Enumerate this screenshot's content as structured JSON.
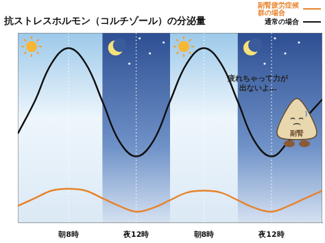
{
  "chart_data": {
    "type": "line",
    "title": "抗ストレスホルモン（コルチゾール）の分泌量",
    "categories": [
      null,
      null,
      null,
      "朝8時",
      null,
      null,
      null,
      "夜12時",
      null,
      null,
      null,
      "朝8時",
      null,
      null,
      null,
      "夜12時",
      null,
      null,
      null
    ],
    "series": [
      {
        "name": "副腎疲労症候群の場合",
        "color": "#e8822a",
        "values": [
          9,
          13,
          17,
          18,
          17,
          13,
          9,
          6,
          8,
          12,
          16,
          17,
          16,
          12,
          8,
          6,
          9,
          13,
          17
        ]
      },
      {
        "name": "通常の場合",
        "color": "#111111",
        "values": [
          47,
          64,
          84,
          92,
          84,
          64,
          43,
          35,
          43,
          64,
          84,
          92,
          84,
          64,
          43,
          35,
          43,
          55,
          65
        ]
      }
    ],
    "ylim": [
      0,
      100
    ],
    "yticks": [],
    "tick_labels": "x",
    "grid": false,
    "legend": "upper right",
    "annotations": [
      "疲れちゃって力が出ないよ…",
      "副腎"
    ]
  }
}
